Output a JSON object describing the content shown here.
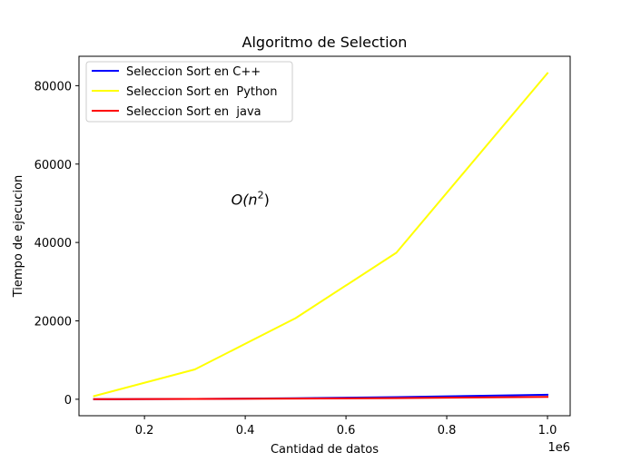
{
  "chart_data": {
    "type": "line",
    "title": "Algoritmo de  Selection",
    "xlabel": "Cantidad de datos",
    "ylabel": "Tiempo de ejecucion",
    "x_offset_text": "1e6",
    "xlim": [
      70000,
      1045000
    ],
    "ylim": [
      -4200,
      87500
    ],
    "xticks": [
      200000,
      400000,
      600000,
      800000,
      1000000
    ],
    "xtick_labels": [
      "0.2",
      "0.4",
      "0.6",
      "0.8",
      "1.0"
    ],
    "yticks": [
      0,
      20000,
      40000,
      60000,
      80000
    ],
    "ytick_labels": [
      "0",
      "20000",
      "40000",
      "60000",
      "80000"
    ],
    "grid": false,
    "legend_position": "top-left",
    "annotation": {
      "base": "O(n",
      "exponent": "2",
      "close": ")",
      "x": 390000,
      "y": 51000
    },
    "series": [
      {
        "name": "Seleccion Sort en C++",
        "color": "#0000ff",
        "x": [
          100000,
          300000,
          500000,
          700000,
          1000000
        ],
        "y": [
          10,
          90,
          280,
          550,
          1150
        ]
      },
      {
        "name": "Seleccion Sort en  Python",
        "color": "#ffff00",
        "x": [
          100000,
          300000,
          500000,
          700000,
          1000000
        ],
        "y": [
          800,
          7600,
          20700,
          37400,
          83200
        ]
      },
      {
        "name": "Seleccion Sort en  java",
        "color": "#ff0000",
        "x": [
          100000,
          300000,
          500000,
          700000,
          1000000
        ],
        "y": [
          20,
          80,
          170,
          300,
          600
        ]
      }
    ]
  }
}
